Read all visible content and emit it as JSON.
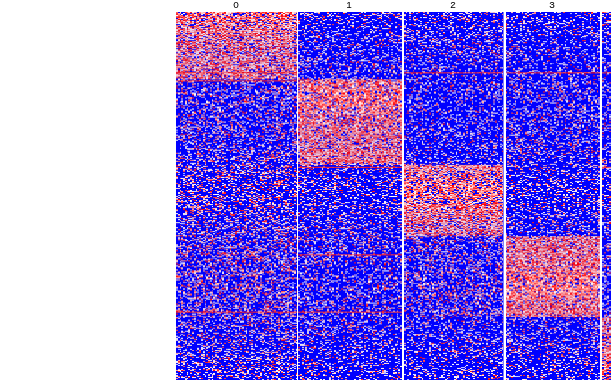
{
  "chart_data": {
    "type": "heatmap",
    "title": "",
    "columns": [
      {
        "label": "0"
      },
      {
        "label": "1"
      },
      {
        "label": "2"
      },
      {
        "label": "3"
      },
      {
        "label": ""
      }
    ],
    "row_blocks": [
      {
        "cluster": "0",
        "rows": 75
      },
      {
        "cluster": "1",
        "rows": 95
      },
      {
        "cluster": "2",
        "rows": 80
      },
      {
        "cluster": "3",
        "rows": 90
      },
      {
        "cluster": "4",
        "rows": 70
      }
    ],
    "color_scale": {
      "low": "#0000ff",
      "mid": "#ffffff",
      "high": "#ff0000"
    },
    "block_intensity": [
      [
        0.78,
        0.12,
        0.12,
        0.1,
        0.12
      ],
      [
        0.2,
        0.8,
        0.1,
        0.15,
        0.12
      ],
      [
        0.25,
        0.15,
        0.78,
        0.15,
        0.12
      ],
      [
        0.25,
        0.15,
        0.22,
        0.82,
        0.12
      ],
      [
        0.18,
        0.12,
        0.12,
        0.12,
        0.75
      ]
    ],
    "emphasized_rows": [
      {
        "block": 0,
        "row": 68,
        "columns": [
          0,
          2,
          3,
          4
        ]
      },
      {
        "block": 1,
        "row": 2,
        "columns": [
          0
        ]
      },
      {
        "block": 2,
        "row": 3,
        "columns": [
          1,
          4
        ]
      },
      {
        "block": 3,
        "row": 20,
        "columns": [
          1
        ]
      },
      {
        "block": 3,
        "row": 84,
        "columns": [
          0,
          1
        ]
      }
    ],
    "grid": false,
    "legend": "none"
  }
}
